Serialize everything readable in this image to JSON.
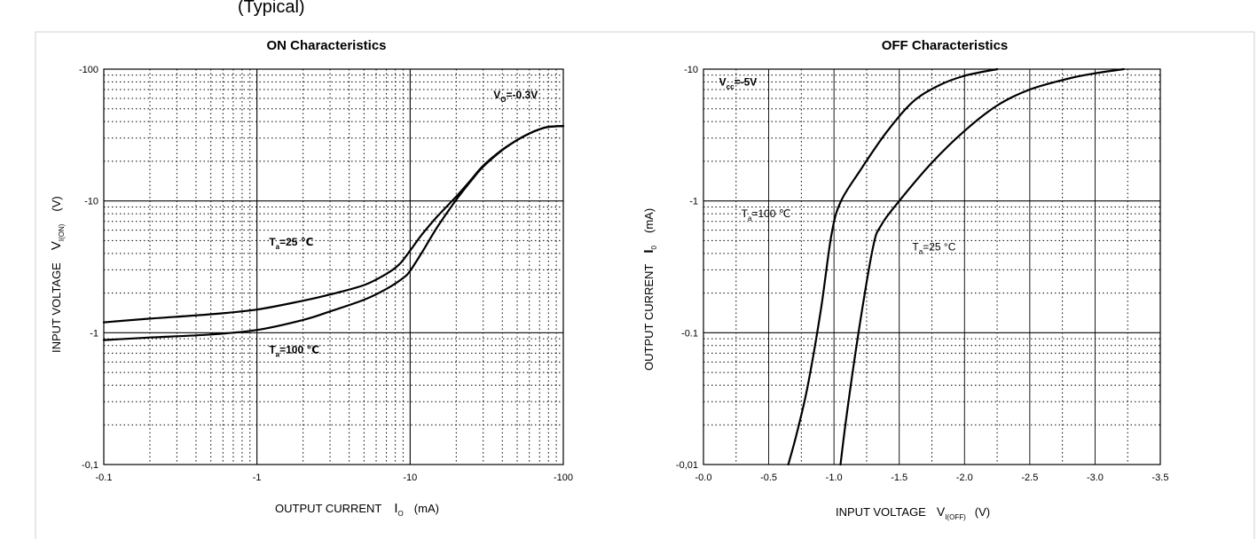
{
  "header_fragment": "(Typical)",
  "chart_data": [
    {
      "type": "line",
      "title": "ON Characteristics",
      "xlabel": "OUTPUT CURRENT",
      "xlabel_symbol": "I",
      "xlabel_sub": "O",
      "xlabel_unit": "(mA)",
      "ylabel": "INPUT VOLTAGE",
      "ylabel_symbol": "V",
      "ylabel_sub": "I(ON)",
      "ylabel_unit": "(V)",
      "x_scale": "log",
      "y_scale": "log",
      "x_axis_direction": "negative values, magnitude increasing to the right",
      "y_axis_direction": "negative values, magnitude increasing upward",
      "xlim": [
        -0.1,
        -100
      ],
      "ylim": [
        -0.1,
        -100
      ],
      "x_ticks": [
        {
          "value": -0.1,
          "label": "-0.1"
        },
        {
          "value": -1,
          "label": "-1"
        },
        {
          "value": -10,
          "label": "-10"
        },
        {
          "value": -100,
          "label": "-100"
        }
      ],
      "y_ticks": [
        {
          "value": -0.1,
          "label": "-0,1"
        },
        {
          "value": -1,
          "label": "-1"
        },
        {
          "value": -10,
          "label": "-10"
        },
        {
          "value": -100,
          "label": "-100"
        }
      ],
      "grid": true,
      "annotations": [
        {
          "symbol": "V",
          "sub": "O",
          "text": "=-0.3V",
          "at_x": -35,
          "at_y": -60
        },
        {
          "symbol": "T",
          "sub": "a",
          "text": "=25 ℃",
          "at_x": -1.2,
          "at_y": -4.6
        },
        {
          "symbol": "T",
          "sub": "a",
          "text": "=100 ℃",
          "at_x": -1.2,
          "at_y": -0.7
        }
      ],
      "series": [
        {
          "label_ref": 1,
          "x": [
            -0.1,
            -0.2,
            -0.5,
            -1,
            -2,
            -3,
            -5,
            -7,
            -8.5,
            -10,
            -12,
            -15,
            -20,
            -25,
            -30,
            -40,
            -50,
            -60,
            -70,
            -80,
            -100
          ],
          "y": [
            -1.2,
            -1.28,
            -1.38,
            -1.5,
            -1.75,
            -1.95,
            -2.3,
            -2.8,
            -3.3,
            -4.2,
            -5.6,
            -7.6,
            -10.8,
            -14.5,
            -18.5,
            -24.5,
            -29,
            -32.5,
            -35,
            -36.5,
            -37
          ]
        },
        {
          "label_ref": 2,
          "x": [
            -0.1,
            -0.2,
            -0.5,
            -1,
            -2,
            -3,
            -5,
            -7,
            -9,
            -10,
            -12,
            -15,
            -20,
            -25,
            -30,
            -40,
            -50,
            -60,
            -70,
            -80,
            -100
          ],
          "y": [
            -0.88,
            -0.92,
            -0.97,
            -1.05,
            -1.25,
            -1.45,
            -1.78,
            -2.15,
            -2.6,
            -2.95,
            -4.1,
            -6.3,
            -10.2,
            -14.2,
            -18.2,
            -24.3,
            -29,
            -32.5,
            -35,
            -36.5,
            -37
          ]
        }
      ]
    },
    {
      "type": "line",
      "title": "OFF Characteristics",
      "xlabel": "INPUT VOLTAGE",
      "xlabel_symbol": "V",
      "xlabel_sub": "I(OFF)",
      "xlabel_unit": "(V)",
      "ylabel": "OUTPUT CURRENT",
      "ylabel_symbol": "I",
      "ylabel_sub": "0",
      "ylabel_unit": "(mA)",
      "x_scale": "linear",
      "y_scale": "log",
      "xlim": [
        0.0,
        -3.5
      ],
      "ylim": [
        -0.01,
        -10
      ],
      "x_ticks": [
        {
          "value": 0.0,
          "label": "-0.0"
        },
        {
          "value": -0.5,
          "label": "-0.5"
        },
        {
          "value": -1.0,
          "label": "-1.0"
        },
        {
          "value": -1.5,
          "label": "-1.5"
        },
        {
          "value": -2.0,
          "label": "-2.0"
        },
        {
          "value": -2.5,
          "label": "-2.5"
        },
        {
          "value": -3.0,
          "label": "-3.0"
        },
        {
          "value": -3.5,
          "label": "-3.5"
        }
      ],
      "y_ticks": [
        {
          "value": -0.01,
          "label": "-0,01"
        },
        {
          "value": -0.1,
          "label": "-0.1"
        },
        {
          "value": -1,
          "label": "-1"
        },
        {
          "value": -10,
          "label": "-10"
        }
      ],
      "grid": true,
      "annotations": [
        {
          "symbol": "V",
          "sub": "cc",
          "text": "=-5V",
          "at_x": -0.12,
          "at_y": -7.5
        },
        {
          "symbol": "T",
          "sub": "a",
          "text": "=100 ℃",
          "at_x": -0.29,
          "at_y": -0.75
        },
        {
          "symbol": "T",
          "sub": "a",
          "text": "=25 °C",
          "at_x": -1.6,
          "at_y": -0.42
        }
      ],
      "series": [
        {
          "label_ref": 1,
          "x": [
            -0.65,
            -0.72,
            -0.8,
            -0.9,
            -0.98,
            -1.05,
            -1.2,
            -1.4,
            -1.6,
            -1.8,
            -2.0,
            -2.25
          ],
          "y": [
            -0.01,
            -0.018,
            -0.04,
            -0.15,
            -0.55,
            -0.98,
            -1.7,
            -3.3,
            -5.6,
            -7.5,
            -8.9,
            -10
          ]
        },
        {
          "label_ref": 2,
          "x": [
            -1.05,
            -1.1,
            -1.2,
            -1.3,
            -1.36,
            -1.5,
            -1.75,
            -2.0,
            -2.25,
            -2.5,
            -2.8,
            -3.0,
            -3.22
          ],
          "y": [
            -0.01,
            -0.025,
            -0.12,
            -0.45,
            -0.65,
            -1.0,
            -1.95,
            -3.4,
            -5.3,
            -7.0,
            -8.5,
            -9.3,
            -10
          ]
        }
      ]
    }
  ]
}
